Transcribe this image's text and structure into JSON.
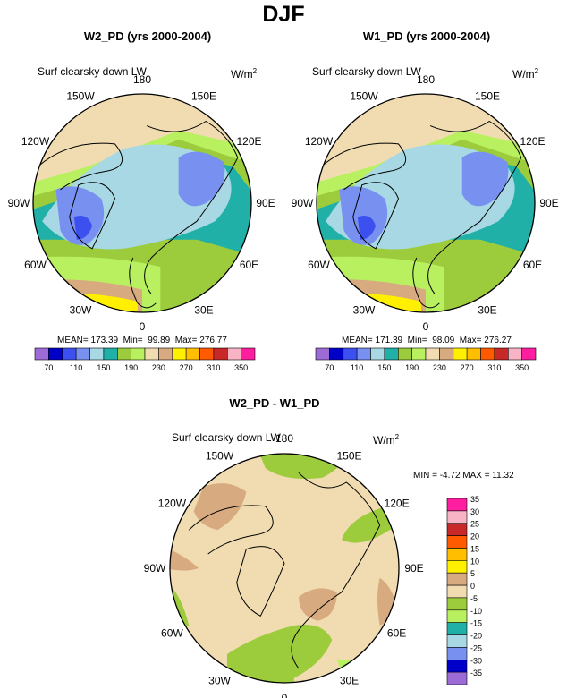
{
  "main_title": "DJF",
  "units_label": "W/m",
  "units_exp": "2",
  "chart_data": [
    {
      "type": "heatmap",
      "projection": "north polar stereographic",
      "title": "W2_PD (yrs 2000-2004)",
      "variable": "Surf clearsky down LW",
      "stats": {
        "mean": "173.39",
        "min": "99.89",
        "max": "276.77"
      },
      "lon_labels": [
        "180",
        "150E",
        "120E",
        "90E",
        "60E",
        "30E",
        "0",
        "30W",
        "60W",
        "90W",
        "120W",
        "150W"
      ],
      "colorbar": {
        "levels": [
          70,
          90,
          110,
          130,
          150,
          170,
          190,
          210,
          230,
          250,
          270,
          290,
          310,
          330,
          350
        ],
        "tick_labels": [
          "70",
          "110",
          "150",
          "190",
          "230",
          "270",
          "310",
          "350"
        ],
        "colors": [
          "#9c6bd6",
          "#0000c8",
          "#3c50f0",
          "#7890f0",
          "#a8d8e4",
          "#20b0a8",
          "#9ccc3c",
          "#b8f060",
          "#f0dcb0",
          "#d8aa80",
          "#fff000",
          "#ffbe00",
          "#ff5a00",
          "#c82828",
          "#f8b4c4",
          "#ff1ea0"
        ]
      }
    },
    {
      "type": "heatmap",
      "projection": "north polar stereographic",
      "title": "W1_PD (yrs 2000-2004)",
      "variable": "Surf clearsky down LW",
      "stats": {
        "mean": "171.39",
        "min": "98.09",
        "max": "276.27"
      },
      "lon_labels": [
        "180",
        "150E",
        "120E",
        "90E",
        "60E",
        "30E",
        "0",
        "30W",
        "60W",
        "90W",
        "120W",
        "150W"
      ],
      "colorbar": {
        "levels": [
          70,
          90,
          110,
          130,
          150,
          170,
          190,
          210,
          230,
          250,
          270,
          290,
          310,
          330,
          350
        ],
        "tick_labels": [
          "70",
          "110",
          "150",
          "190",
          "230",
          "270",
          "310",
          "350"
        ],
        "colors": [
          "#9c6bd6",
          "#0000c8",
          "#3c50f0",
          "#7890f0",
          "#a8d8e4",
          "#20b0a8",
          "#9ccc3c",
          "#b8f060",
          "#f0dcb0",
          "#d8aa80",
          "#fff000",
          "#ffbe00",
          "#ff5a00",
          "#c82828",
          "#f8b4c4",
          "#ff1ea0"
        ]
      }
    },
    {
      "type": "heatmap",
      "projection": "north polar stereographic",
      "title": "W2_PD - W1_PD",
      "variable": "Surf clearsky down LW",
      "stats": {
        "min": "-4.72",
        "max": "11.32"
      },
      "stats_text": "MIN =  -4.72 MAX =  11.32",
      "lon_labels": [
        "180",
        "150E",
        "120E",
        "90E",
        "60E",
        "30E",
        "0",
        "30W",
        "60W",
        "90W",
        "120W",
        "150W"
      ],
      "colorbar": {
        "orientation": "vertical",
        "levels": [
          -35,
          -30,
          -25,
          -20,
          -15,
          -10,
          -5,
          0,
          5,
          10,
          15,
          20,
          25,
          30,
          35
        ],
        "tick_labels": [
          "-35",
          "-30",
          "-25",
          "-20",
          "-15",
          "-10",
          "-5",
          "0",
          "5",
          "10",
          "15",
          "20",
          "25",
          "30",
          "35"
        ],
        "colors": [
          "#9c6bd6",
          "#0000c8",
          "#7890f0",
          "#a8d8e4",
          "#20b0a8",
          "#b8f060",
          "#9ccc3c",
          "#f0dcb0",
          "#d8aa80",
          "#fff000",
          "#ffbe00",
          "#ff5a00",
          "#c82828",
          "#f8b4c4",
          "#ff1ea0"
        ]
      }
    }
  ]
}
